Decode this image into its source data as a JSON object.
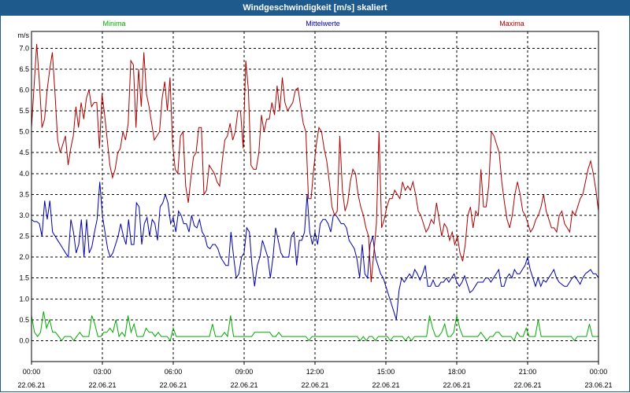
{
  "chart_data": {
    "type": "line",
    "title": "Windgeschwindigkeit [m/s] skaliert",
    "ylabel": "m/s",
    "ylim": [
      -0.5,
      7.4
    ],
    "xlim": [
      0,
      24
    ],
    "grid": true,
    "x_ticks": [
      {
        "time": "00:00",
        "date": "22.06.21"
      },
      {
        "time": "03:00",
        "date": "22.06.21"
      },
      {
        "time": "06:00",
        "date": "22.06.21"
      },
      {
        "time": "09:00",
        "date": "22.06.21"
      },
      {
        "time": "12:00",
        "date": "22.06.21"
      },
      {
        "time": "15:00",
        "date": "22.06.21"
      },
      {
        "time": "18:00",
        "date": "22.06.21"
      },
      {
        "time": "21:00",
        "date": "22.06.21"
      },
      {
        "time": "00:00",
        "date": "23.06.21"
      }
    ],
    "y_ticks": [
      "0.0",
      "0.5",
      "1.0",
      "1.5",
      "2.0",
      "2.5",
      "3.0",
      "3.5",
      "4.0",
      "4.5",
      "5.0",
      "5.5",
      "6.0",
      "6.5",
      "7.0"
    ],
    "series": [
      {
        "name": "Minima",
        "color": "#00aa00",
        "values": [
          0.6,
          0.2,
          0.1,
          0.2,
          0.7,
          0.3,
          0.5,
          0.2,
          0.2,
          0.1,
          0.0,
          0.1,
          0.1,
          0.1,
          0.0,
          0.1,
          0.2,
          0.1,
          0.1,
          0.1,
          0.6,
          0.4,
          0.1,
          0.1,
          0.2,
          0.2,
          0.3,
          0.2,
          0.5,
          0.1,
          0.2,
          0.1,
          0.6,
          0.2,
          0.4,
          0.1,
          0.1,
          0.1,
          0.3,
          0.2,
          0.2,
          0.1,
          0.2,
          0.1,
          0.1,
          0.1,
          0.0,
          0.3,
          0.1,
          0.1,
          0.1,
          0.1,
          0.1,
          0.1,
          0.1,
          0.1,
          0.1,
          0.1,
          0.1,
          0.1,
          0.4,
          0.1,
          0.1,
          0.1,
          0.2,
          0.1,
          0.6,
          0.1,
          0.1,
          0.1,
          0.1,
          0.1,
          0.1,
          0.1,
          0.2,
          0.2,
          0.2,
          0.2,
          0.2,
          0.2,
          0.1,
          0.1,
          0.2,
          0.1,
          0.1,
          0.1,
          0.1,
          0.1,
          0.1,
          0.1,
          0.1,
          0.1,
          0.0,
          0.1,
          0.1,
          0.1,
          0.1,
          0.1,
          0.1,
          0.1,
          0.1,
          0.1,
          0.1,
          0.1,
          0.1,
          0.1,
          0.1,
          0.1,
          0.1,
          0.0,
          0.1,
          0.0,
          0.1,
          0.1,
          0.0,
          0.1,
          0.1,
          0.1,
          0.1,
          0.0,
          0.1,
          0.1,
          0.1,
          0.1,
          0.0,
          0.1,
          0.0,
          0.1,
          0.1,
          0.1,
          0.1,
          0.1,
          0.6,
          0.3,
          0.1,
          0.1,
          0.2,
          0.4,
          0.1,
          0.1,
          0.2,
          0.6,
          0.3,
          0.1,
          0.1,
          0.1,
          0.1,
          0.1,
          0.1,
          0.2,
          0.1,
          0.0,
          0.1,
          0.1,
          0.2,
          0.2,
          0.1,
          0.1,
          0.1,
          0.1,
          0.0,
          0.2,
          0.1,
          0.1,
          0.3,
          0.1,
          0.1,
          0.1,
          0.5,
          0.1,
          0.1,
          0.1,
          0.1,
          0.1,
          0.1,
          0.1,
          0.1,
          0.1,
          0.1,
          0.1,
          0.0,
          0.1,
          0.1,
          0.1,
          0.1,
          0.4,
          0.1,
          0.1,
          0.1
        ]
      },
      {
        "name": "Mittelwerte",
        "color": "#0000aa",
        "values": [
          2.9,
          2.85,
          2.85,
          2.8,
          2.5,
          3.35,
          2.9,
          3.35,
          2.6,
          2.5,
          2.4,
          2.3,
          2.2,
          2.1,
          2.0,
          2.9,
          2.6,
          2.1,
          2.3,
          2.9,
          2.0,
          2.9,
          2.1,
          2.25,
          2.6,
          2.9,
          3.8,
          3.0,
          2.6,
          2.2,
          2.0,
          2.1,
          2.3,
          2.5,
          2.8,
          2.5,
          2.3,
          2.9,
          2.3,
          2.3,
          3.3,
          3.2,
          2.3,
          2.8,
          2.95,
          2.5,
          2.9,
          2.8,
          2.4,
          3.2,
          3.3,
          3.5,
          3.3,
          2.8,
          2.95,
          2.6,
          3.1,
          3.0,
          2.8,
          2.8,
          2.6,
          3.0,
          2.75,
          2.7,
          2.9,
          2.6,
          2.5,
          2.25,
          2.2,
          2.3,
          2.3,
          2.2,
          2.0,
          1.9,
          1.8,
          1.8,
          2.6,
          2.0,
          1.5,
          1.6,
          2.0,
          2.1,
          2.7,
          2.6,
          1.8,
          1.3,
          1.8,
          2.0,
          2.4,
          2.2,
          2.0,
          1.5,
          2.0,
          2.7,
          2.4,
          2.1,
          2.0,
          2.0,
          2.0,
          2.5,
          2.6,
          1.8,
          2.4,
          2.4,
          2.6,
          3.5,
          2.6,
          2.3,
          2.6,
          2.3,
          2.8,
          2.9,
          2.9,
          2.8,
          2.6,
          3.0,
          3.0,
          2.9,
          2.8,
          2.8,
          2.7,
          2.4,
          2.3,
          2.2,
          1.95,
          1.5,
          2.3,
          1.6,
          1.5,
          2.3,
          2.5,
          2.0,
          1.8,
          1.6,
          1.5,
          1.3,
          1.1,
          0.9,
          0.7,
          0.5,
          1.2,
          1.5,
          1.4,
          1.5,
          1.6,
          1.5,
          1.7,
          1.6,
          1.45,
          1.6,
          1.8,
          1.3,
          1.3,
          1.45,
          1.3,
          1.3,
          1.4,
          1.4,
          1.5,
          1.4,
          1.5,
          1.6,
          1.4,
          1.3,
          1.4,
          1.55,
          1.35,
          1.15,
          1.2,
          1.3,
          1.4,
          1.4,
          1.4,
          1.5,
          1.5,
          1.4,
          1.5,
          1.6,
          1.7,
          1.3,
          1.3,
          1.5,
          1.6,
          1.5,
          1.7,
          1.6,
          1.6,
          1.7,
          1.8,
          2.0,
          1.7,
          1.5,
          1.3,
          1.5,
          1.3,
          1.45,
          1.4,
          1.5,
          1.6,
          1.7,
          1.5,
          1.4,
          1.35,
          1.3,
          1.3,
          1.4,
          1.5,
          1.55,
          1.45,
          1.35,
          1.5,
          1.6,
          1.65,
          1.7,
          1.6,
          1.6,
          1.5
        ]
      },
      {
        "name": "Maxima",
        "color": "#aa0000",
        "values": [
          5.1,
          6.1,
          7.1,
          6.2,
          5.1,
          5.3,
          6.0,
          6.5,
          6.9,
          5.9,
          4.8,
          4.5,
          4.7,
          4.9,
          4.2,
          4.6,
          4.9,
          5.6,
          5.1,
          5.7,
          5.3,
          5.8,
          6.0,
          5.6,
          5.7,
          5.7,
          4.6,
          5.9,
          5.4,
          4.8,
          4.2,
          3.9,
          4.1,
          4.5,
          4.6,
          5.0,
          4.8,
          5.2,
          6.7,
          6.6,
          5.1,
          6.5,
          5.6,
          6.9,
          5.9,
          5.6,
          5.2,
          4.8,
          4.9,
          5.0,
          5.8,
          6.2,
          5.5,
          6.3,
          4.7,
          4.1,
          4.0,
          4.9,
          5.0,
          3.7,
          3.3,
          3.9,
          4.4,
          4.5,
          5.1,
          5.1,
          3.5,
          3.6,
          4.2,
          4.1,
          4.0,
          3.8,
          3.7,
          4.3,
          4.8,
          4.9,
          5.2,
          4.8,
          5.0,
          5.5,
          5.5,
          4.6,
          6.7,
          6.0,
          4.2,
          4.1,
          4.1,
          4.5,
          5.4,
          5.0,
          5.3,
          5.3,
          5.7,
          5.4,
          6.1,
          5.5,
          6.3,
          5.7,
          5.5,
          5.6,
          5.7,
          6.0,
          6.05,
          5.6,
          5.2,
          5.0,
          3.4,
          3.4,
          4.1,
          4.7,
          5.1,
          5.0,
          4.6,
          4.3,
          3.8,
          3.2,
          3.0,
          3.1,
          4.9,
          3.6,
          3.1,
          3.3,
          3.8,
          4.1,
          4.0,
          3.5,
          3.2,
          3.0,
          2.7,
          2.5,
          1.4,
          2.1,
          2.8,
          5.0,
          2.7,
          2.9,
          3.2,
          3.4,
          3.4,
          3.6,
          3.5,
          3.4,
          3.8,
          3.6,
          3.7,
          3.6,
          3.8,
          3.5,
          3.1,
          3.0,
          2.8,
          2.6,
          2.7,
          2.9,
          2.8,
          3.3,
          2.9,
          2.5,
          2.8,
          2.7,
          2.4,
          2.6,
          2.3,
          2.5,
          2.1,
          1.9,
          2.3,
          3.0,
          3.2,
          2.7,
          3.1,
          3.0,
          4.1,
          3.2,
          3.2,
          3.7,
          5.0,
          4.9,
          4.7,
          4.5,
          3.8,
          3.3,
          2.9,
          2.7,
          3.0,
          3.5,
          3.8,
          3.5,
          3.1,
          3.0,
          2.8,
          2.6,
          2.7,
          2.9,
          3.0,
          3.2,
          3.5,
          3.1,
          2.9,
          2.7,
          2.7,
          2.6,
          3.0,
          3.1,
          2.8,
          2.7,
          2.6,
          3.1,
          3.0,
          3.2,
          3.4,
          3.5,
          3.8,
          4.1,
          4.3,
          4.0,
          3.6,
          3.1
        ]
      }
    ]
  }
}
